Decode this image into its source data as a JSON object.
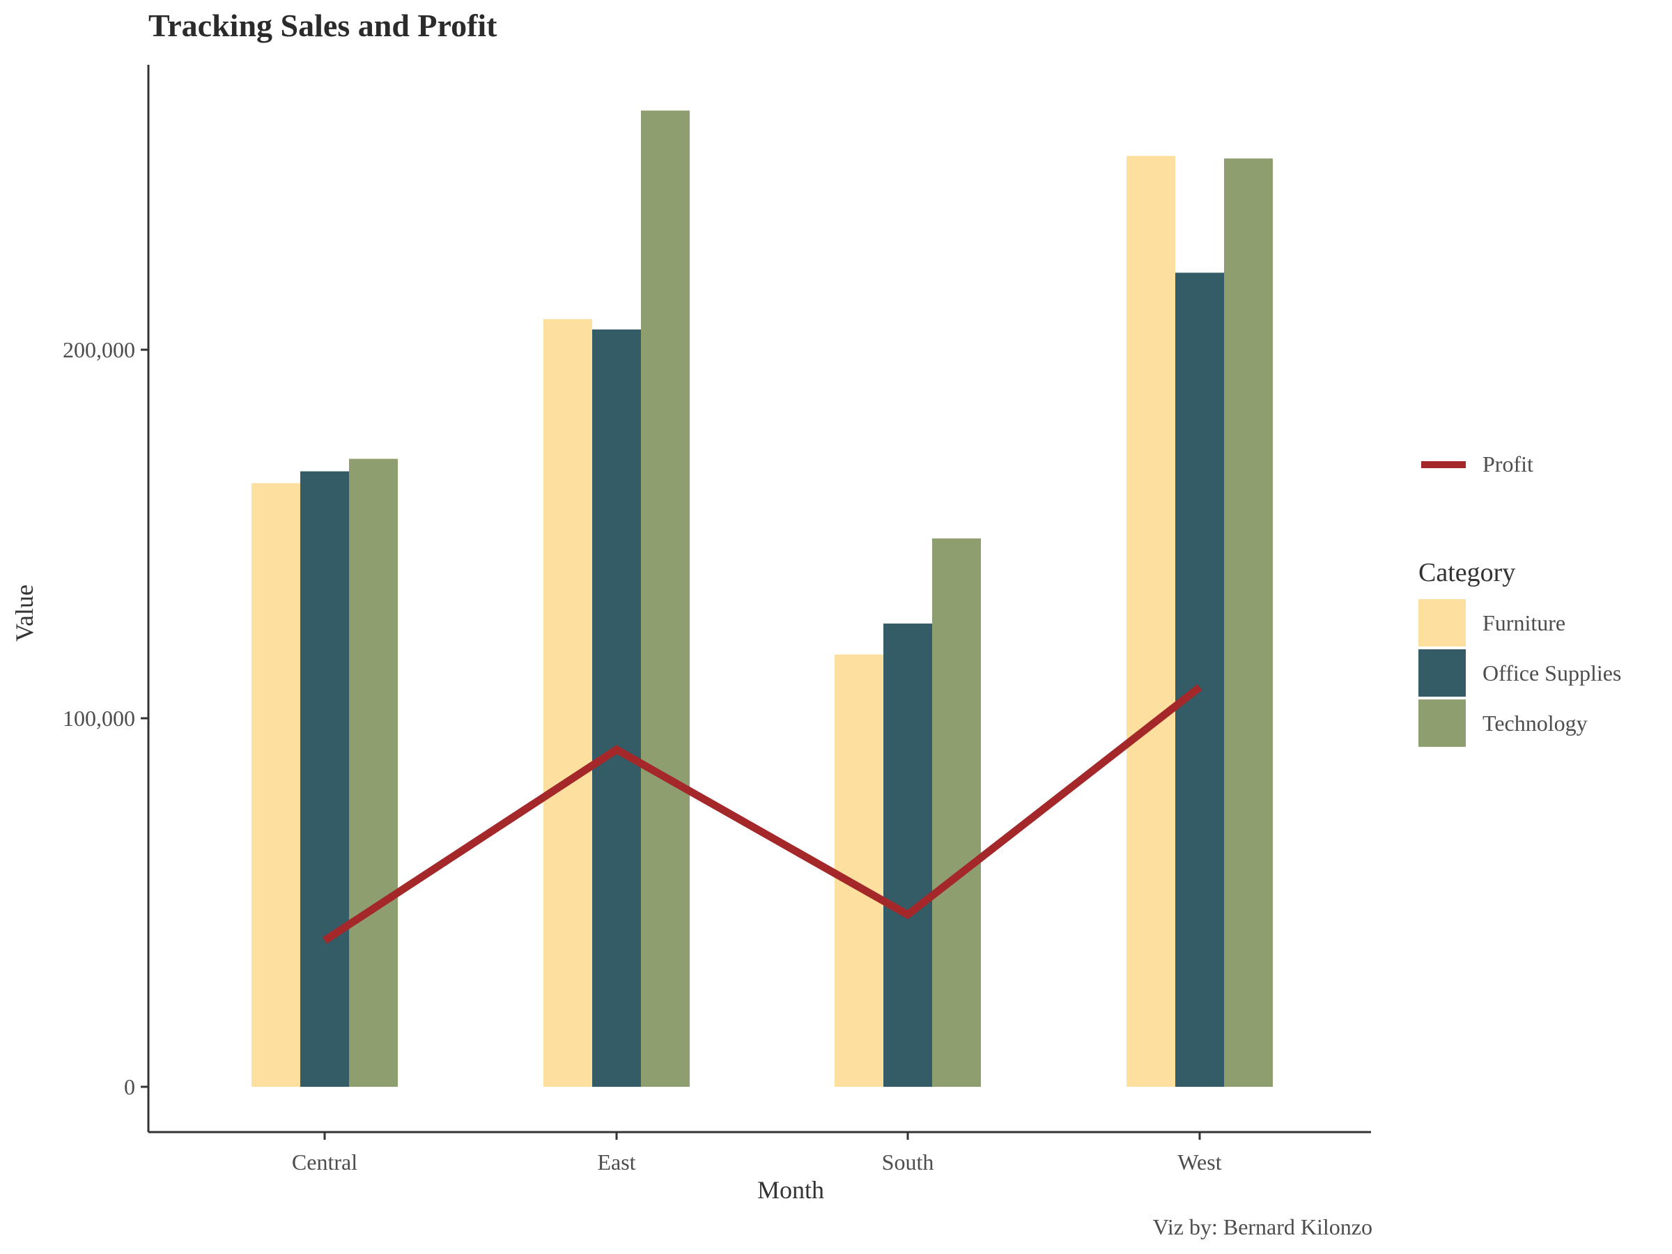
{
  "chart_data": {
    "type": "bar",
    "title": "Tracking Sales and Profit",
    "xlabel": "Month",
    "ylabel": "Value",
    "caption": "Viz by: Bernard Kilonzo",
    "categories": [
      "Central",
      "East",
      "South",
      "West"
    ],
    "series": [
      {
        "name": "Furniture",
        "color": "#FDDF9F",
        "values": [
          163800,
          208300,
          117300,
          252600
        ]
      },
      {
        "name": "Office Supplies",
        "color": "#335C67",
        "values": [
          167000,
          205500,
          125700,
          220900
        ]
      },
      {
        "name": "Technology",
        "color": "#8F9E6F",
        "values": [
          170400,
          264900,
          148800,
          251900
        ]
      }
    ],
    "line_series": {
      "name": "Profit",
      "color": "#A4282A",
      "values": [
        39700,
        91500,
        46700,
        108400
      ]
    },
    "y_ticks": [
      0,
      100000,
      200000
    ],
    "y_tick_labels": [
      "0",
      "100,000",
      "200,000"
    ],
    "ylim": [
      -12500,
      277500
    ],
    "grid": false,
    "legend_position": "right",
    "legend": {
      "line_label": "Profit",
      "category_title": "Category",
      "items": [
        "Furniture",
        "Office Supplies",
        "Technology"
      ]
    }
  }
}
